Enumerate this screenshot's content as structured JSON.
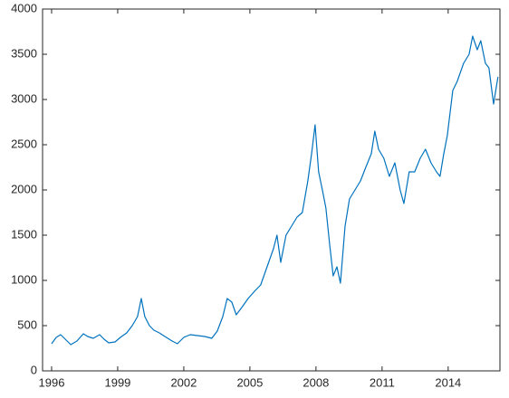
{
  "chart_data": {
    "type": "line",
    "x": [
      1996.0,
      1996.21,
      1996.41,
      1996.62,
      1996.87,
      1997.15,
      1997.44,
      1997.64,
      1997.89,
      1998.18,
      1998.38,
      1998.59,
      1998.88,
      1999.12,
      1999.41,
      1999.66,
      1999.9,
      2000.07,
      2000.23,
      2000.44,
      2000.64,
      2000.89,
      2001.14,
      2001.47,
      2001.71,
      2002.0,
      2002.29,
      2002.62,
      2002.95,
      2003.27,
      2003.52,
      2003.77,
      2003.97,
      2004.18,
      2004.38,
      2004.63,
      2004.92,
      2005.21,
      2005.49,
      2005.78,
      2006.07,
      2006.23,
      2006.4,
      2006.64,
      2006.89,
      2007.14,
      2007.38,
      2007.63,
      2007.8,
      2007.96,
      2008.12,
      2008.29,
      2008.45,
      2008.62,
      2008.78,
      2008.95,
      2009.11,
      2009.32,
      2009.52,
      2009.77,
      2010.02,
      2010.26,
      2010.51,
      2010.67,
      2010.84,
      2011.08,
      2011.33,
      2011.58,
      2011.82,
      2011.99,
      2012.23,
      2012.48,
      2012.73,
      2012.97,
      2013.22,
      2013.47,
      2013.63,
      2013.8,
      2013.96,
      2014.21,
      2014.41,
      2014.7,
      2014.95,
      2015.11,
      2015.32,
      2015.48,
      2015.69,
      2015.85,
      2016.06,
      2016.26
    ],
    "series": [
      {
        "color": "#0072bd",
        "values": [
          300,
          370,
          400,
          350,
          290,
          330,
          410,
          380,
          360,
          400,
          350,
          310,
          320,
          370,
          420,
          500,
          600,
          800,
          600,
          500,
          450,
          420,
          380,
          330,
          300,
          370,
          400,
          390,
          380,
          360,
          440,
          600,
          800,
          760,
          620,
          700,
          800,
          880,
          950,
          1150,
          1350,
          1500,
          1200,
          1500,
          1600,
          1700,
          1750,
          2100,
          2400,
          2720,
          2200,
          2000,
          1800,
          1400,
          1050,
          1150,
          970,
          1600,
          1900,
          2000,
          2100,
          2250,
          2400,
          2650,
          2450,
          2350,
          2150,
          2300,
          2000,
          1850,
          2200,
          2200,
          2350,
          2450,
          2300,
          2200,
          2150,
          2400,
          2600,
          3100,
          3200,
          3400,
          3500,
          3700,
          3550,
          3650,
          3400,
          3350,
          2950,
          3250
        ]
      }
    ],
    "xlim": [
      1995.59,
      2016.35
    ],
    "ylim": [
      0,
      4000
    ],
    "xticks": [
      1996,
      1999,
      2002,
      2005,
      2008,
      2011,
      2014
    ],
    "yticks": [
      0,
      500,
      1000,
      1500,
      2000,
      2500,
      3000,
      3500,
      4000
    ],
    "grid": false
  }
}
